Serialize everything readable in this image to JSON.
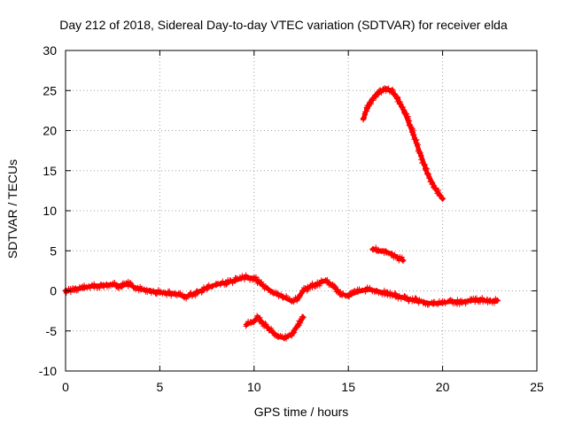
{
  "chart_data": {
    "type": "scatter",
    "title": "Day 212 of 2018, Sidereal Day-to-day VTEC variation (SDTVAR) for receiver elda",
    "xlabel": "GPS time / hours",
    "ylabel": "SDTVAR / TECUs",
    "xlim": [
      0,
      25
    ],
    "ylim": [
      -10,
      30
    ],
    "xticks": [
      0,
      5,
      10,
      15,
      20,
      25
    ],
    "yticks": [
      -10,
      -5,
      0,
      5,
      10,
      15,
      20,
      25,
      30
    ],
    "grid": true,
    "legend": "none",
    "marker": "plus",
    "color": "#ff0000",
    "series": [
      {
        "name": "main-arc",
        "x": [
          0.0,
          0.5,
          1.0,
          1.5,
          2.0,
          2.5,
          3.0,
          3.3,
          3.6,
          4.0,
          4.5,
          5.0,
          5.5,
          6.0,
          6.3,
          6.6,
          7.0,
          7.5,
          8.0,
          8.5,
          9.0,
          9.5,
          10.0,
          10.5,
          11.0,
          11.5,
          12.0,
          12.3,
          12.6,
          13.0,
          13.5,
          13.8,
          14.2,
          14.6,
          15.0,
          15.5,
          16.0,
          16.5,
          17.0,
          17.5,
          18.0,
          18.5,
          19.0,
          19.5,
          20.0,
          20.5,
          21.0,
          21.5,
          22.0,
          22.5,
          22.9
        ],
        "y": [
          0.0,
          0.2,
          0.4,
          0.6,
          0.7,
          0.8,
          0.6,
          0.9,
          0.5,
          0.2,
          0.0,
          -0.2,
          -0.3,
          -0.4,
          -0.8,
          -0.5,
          -0.2,
          0.4,
          0.8,
          1.0,
          1.3,
          1.7,
          1.6,
          0.6,
          -0.2,
          -0.7,
          -1.3,
          -1.0,
          0.0,
          0.6,
          1.0,
          1.3,
          0.6,
          -0.4,
          -0.6,
          -0.1,
          0.2,
          0.0,
          -0.3,
          -0.6,
          -0.9,
          -1.2,
          -1.4,
          -1.6,
          -1.5,
          -1.3,
          -1.4,
          -1.2,
          -1.1,
          -1.3,
          -1.2
        ]
      },
      {
        "name": "negative-dip-arc",
        "x": [
          9.6,
          10.0,
          10.2,
          10.5,
          11.0,
          11.3,
          11.6,
          12.0,
          12.3,
          12.6
        ],
        "y": [
          -4.2,
          -3.8,
          -3.3,
          -4.1,
          -5.2,
          -5.7,
          -5.9,
          -5.4,
          -4.4,
          -3.3
        ]
      },
      {
        "name": "high-arc",
        "x": [
          15.8,
          16.0,
          16.3,
          16.6,
          17.0,
          17.3,
          17.6,
          18.0,
          18.4,
          18.8,
          19.2,
          19.6,
          20.0
        ],
        "y": [
          21.5,
          22.8,
          24.0,
          24.8,
          25.2,
          24.9,
          24.0,
          22.2,
          19.8,
          17.2,
          14.6,
          12.8,
          11.5
        ]
      },
      {
        "name": "short-arc",
        "x": [
          16.3,
          16.6,
          17.0,
          17.3,
          17.6,
          17.9
        ],
        "y": [
          5.2,
          5.0,
          4.9,
          4.6,
          4.2,
          3.8
        ]
      }
    ]
  }
}
